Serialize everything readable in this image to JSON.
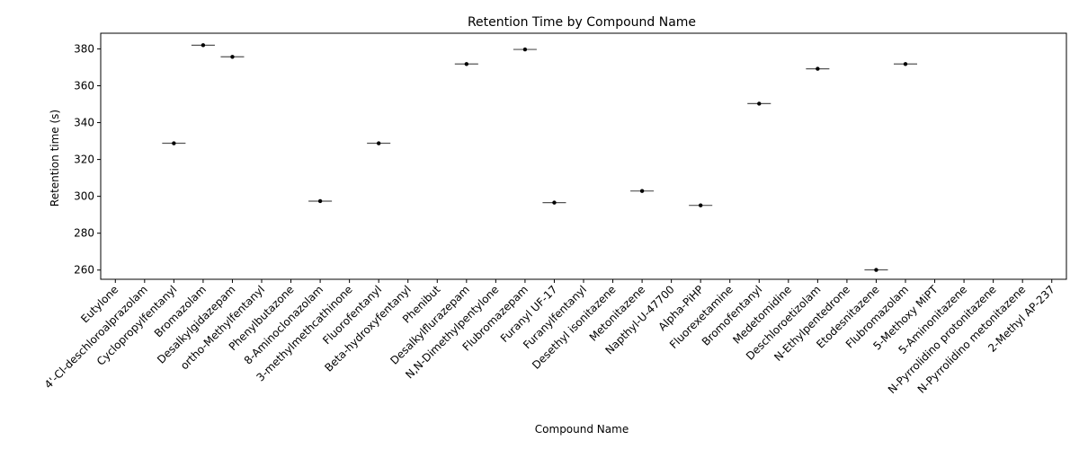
{
  "chart_data": {
    "type": "box",
    "title": "Retention Time by Compound Name",
    "xlabel": "Compound Name",
    "ylabel": "Retention time (s)",
    "ylim": [
      255,
      388.5
    ],
    "yticks": [
      260,
      280,
      300,
      320,
      340,
      360,
      380
    ],
    "grid": false,
    "categories": [
      "Eutylone",
      "4'-Cl-deschloroalprazolam",
      "Cyclopropylfentanyl",
      "Bromazolam",
      "Desalkylgidazepam",
      "ortho-Methylfentanyl",
      "Phenylbutazone",
      "8-Aminoclonazolam",
      "3-methylmethcathinone",
      "Fluorofentanyl",
      "Beta-hydroxyfentanyl",
      "Phenibut",
      "Desalkylflurazepam",
      "N,N-Dimethylpentylone",
      "Flubromazepam",
      "Furanyl UF-17",
      "Furanylfentanyl",
      "Desethyl isonitazene",
      "Metonitazene",
      "Napthyl-U-47700",
      "Alpha-PiHP",
      "Fluorexetamine",
      "Bromofentanyl",
      "Medetomidine",
      "Deschloroetizolam",
      "N-Ethylpentedrone",
      "Etodesnitazene",
      "Flubromazolam",
      "5-Methoxy MiPT",
      "5-Aminonitazene",
      "N-Pyrrolidino protonitazene",
      "N-Pyrrolidino metonitazene",
      "2-Methyl AP-237"
    ],
    "values": [
      null,
      null,
      328.8,
      382.0,
      375.7,
      null,
      null,
      297.4,
      null,
      328.8,
      null,
      null,
      371.8,
      null,
      379.7,
      296.6,
      null,
      null,
      302.9,
      null,
      295.1,
      null,
      350.3,
      null,
      369.2,
      null,
      260.1,
      371.8,
      null,
      null,
      null,
      null,
      null
    ]
  }
}
